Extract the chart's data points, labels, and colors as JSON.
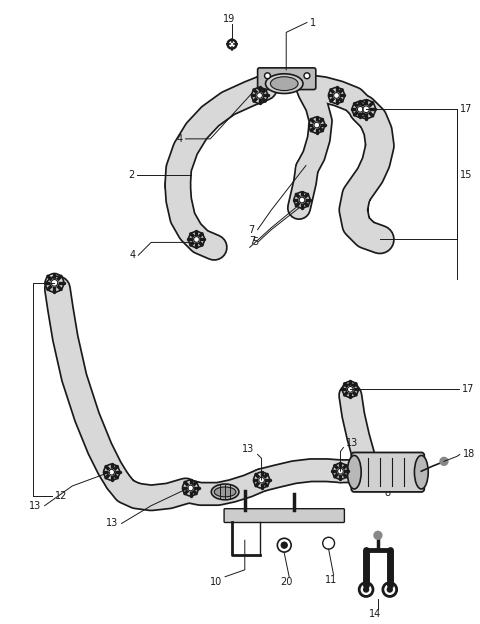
{
  "bg_color": "#ffffff",
  "line_color": "#1a1a1a",
  "hose_fill": "#d8d8d8",
  "label_fontsize": 7,
  "fig_width": 4.8,
  "fig_height": 6.24,
  "dpi": 100
}
